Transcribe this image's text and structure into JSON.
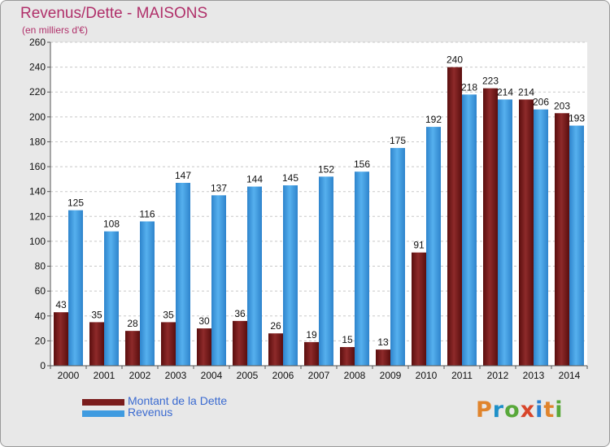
{
  "header": {
    "title": "Revenus/Dette - MAISONS",
    "subtitle": "(en milliers d'€)"
  },
  "colors": {
    "debt": "#7a1c1c",
    "revenue": "#3f9be0",
    "title": "#b0306a",
    "legend_text": "#3a6ad0"
  },
  "legend": {
    "debt_label": "Montant de la Dette",
    "revenue_label": "Revenus"
  },
  "logo": {
    "text": "Proxiti",
    "letter_colors": [
      "#e0842c",
      "#1e90c8",
      "#58a83a",
      "#d8452a",
      "#2a7fd0",
      "#e0842c",
      "#58a83a"
    ]
  },
  "chart_data": {
    "type": "bar",
    "title": "Revenus/Dette - MAISONS",
    "subtitle": "(en milliers d'€)",
    "categories": [
      "2000",
      "2001",
      "2002",
      "2003",
      "2004",
      "2005",
      "2006",
      "2007",
      "2008",
      "2009",
      "2010",
      "2011",
      "2012",
      "2013",
      "2014"
    ],
    "series": [
      {
        "name": "Montant de la Dette",
        "color": "#7a1c1c",
        "values": [
          43,
          35,
          28,
          35,
          30,
          36,
          26,
          19,
          15,
          13,
          91,
          240,
          223,
          214,
          203
        ]
      },
      {
        "name": "Revenus",
        "color": "#3f9be0",
        "values": [
          125,
          108,
          116,
          147,
          137,
          144,
          145,
          152,
          156,
          175,
          192,
          218,
          214,
          206,
          193
        ]
      }
    ],
    "yticks": [
      0,
      20,
      40,
      60,
      80,
      100,
      120,
      140,
      160,
      180,
      200,
      220,
      240,
      260
    ],
    "ylim": [
      0,
      260
    ],
    "grid": true,
    "legend_position": "bottom-left"
  }
}
